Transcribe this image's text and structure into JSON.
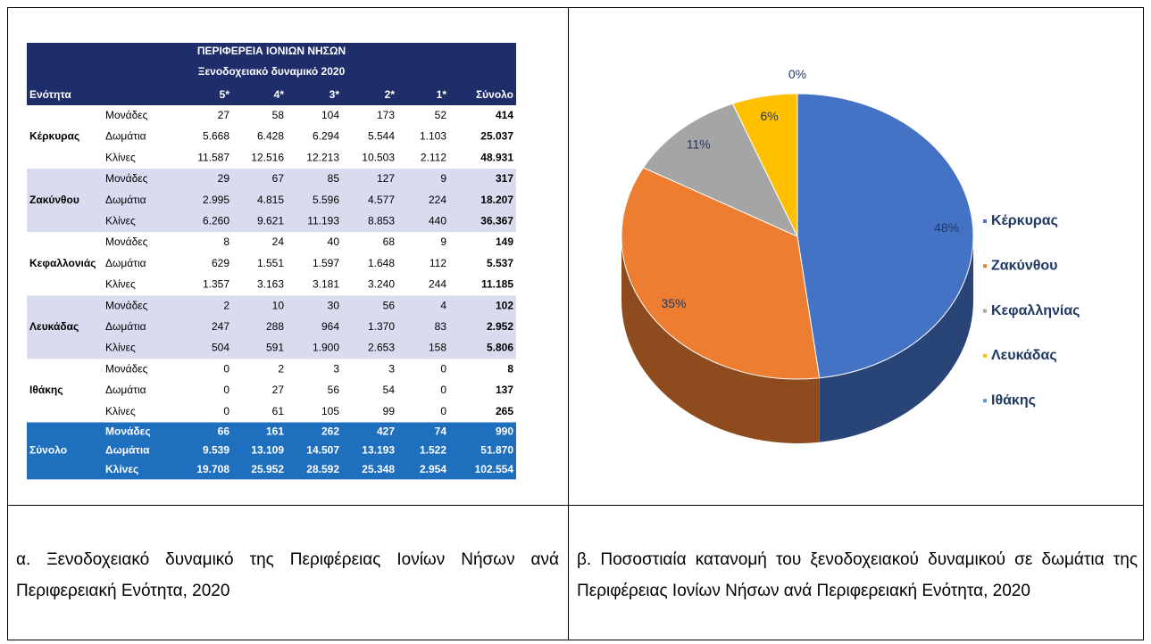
{
  "table": {
    "title": "ΠΕΡΙΦΕΡΕΙΑ ΙΟΝΙΩΝ ΝΗΣΩΝ",
    "subtitle": "Ξενοδοχειακό δυναμικό 2020",
    "columns": [
      "Ενότητα",
      "5*",
      "4*",
      "3*",
      "2*",
      "1*",
      "Σύνολο"
    ],
    "groups": [
      {
        "name": "Κέρκυρας",
        "rows": [
          [
            "Μονάδες",
            "27",
            "58",
            "104",
            "173",
            "52",
            "414"
          ],
          [
            "Δωμάτια",
            "5.668",
            "6.428",
            "6.294",
            "5.544",
            "1.103",
            "25.037"
          ],
          [
            "Κλίνες",
            "11.587",
            "12.516",
            "12.213",
            "10.503",
            "2.112",
            "48.931"
          ]
        ]
      },
      {
        "name": "Ζακύνθου",
        "rows": [
          [
            "Μονάδες",
            "29",
            "67",
            "85",
            "127",
            "9",
            "317"
          ],
          [
            "Δωμάτια",
            "2.995",
            "4.815",
            "5.596",
            "4.577",
            "224",
            "18.207"
          ],
          [
            "Κλίνες",
            "6.260",
            "9.621",
            "11.193",
            "8.853",
            "440",
            "36.367"
          ]
        ]
      },
      {
        "name": "Κεφαλλονιάς",
        "rows": [
          [
            "Μονάδες",
            "8",
            "24",
            "40",
            "68",
            "9",
            "149"
          ],
          [
            "Δωμάτια",
            "629",
            "1.551",
            "1.597",
            "1.648",
            "112",
            "5.537"
          ],
          [
            "Κλίνες",
            "1.357",
            "3.163",
            "3.181",
            "3.240",
            "244",
            "11.185"
          ]
        ]
      },
      {
        "name": "Λευκάδας",
        "rows": [
          [
            "Μονάδες",
            "2",
            "10",
            "30",
            "56",
            "4",
            "102"
          ],
          [
            "Δωμάτια",
            "247",
            "288",
            "964",
            "1.370",
            "83",
            "2.952"
          ],
          [
            "Κλίνες",
            "504",
            "591",
            "1.900",
            "2.653",
            "158",
            "5.806"
          ]
        ]
      },
      {
        "name": "Ιθάκης",
        "rows": [
          [
            "Μονάδες",
            "0",
            "2",
            "3",
            "3",
            "0",
            "8"
          ],
          [
            "Δωμάτια",
            "0",
            "27",
            "56",
            "54",
            "0",
            "137"
          ],
          [
            "Κλίνες",
            "0",
            "61",
            "105",
            "99",
            "0",
            "265"
          ]
        ]
      }
    ],
    "total": {
      "name": "Σύνολο",
      "rows": [
        [
          "Μονάδες",
          "66",
          "161",
          "262",
          "427",
          "74",
          "990"
        ],
        [
          "Δωμάτια",
          "9.539",
          "13.109",
          "14.507",
          "13.193",
          "1.522",
          "51.870"
        ],
        [
          "Κλίνες",
          "19.708",
          "25.952",
          "28.592",
          "25.348",
          "2.954",
          "102.554"
        ]
      ]
    }
  },
  "chart_data": {
    "type": "pie",
    "categories": [
      "Κέρκυρας",
      "Ζακύνθου",
      "Κεφαλληνίας",
      "Λευκάδας",
      "Ιθάκης"
    ],
    "values": [
      48,
      35,
      11,
      6,
      0
    ],
    "value_labels": [
      "48%",
      "35%",
      "11%",
      "6%",
      "0%"
    ],
    "colors": [
      "#4472c4",
      "#ed7d31",
      "#a5a5a5",
      "#ffc000",
      "#5b9bd5"
    ],
    "legend": "right"
  },
  "captions": {
    "left": "α. Ξενοδοχειακό δυναμικό της Περιφέρειας Ιονίων Νήσων ανά Περιφερειακή Ενότητα, 2020",
    "right": "β. Ποσοστιαία κατανομή του ξενοδοχειακού δυναμικού σε δωμάτια της Περιφέρειας Ιονίων Νήσων ανά Περιφερειακή Ενότητα, 2020"
  }
}
